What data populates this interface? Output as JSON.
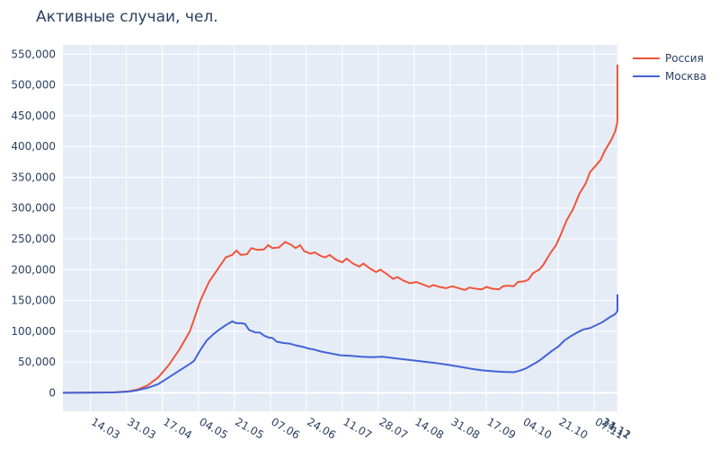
{
  "chart_data": {
    "type": "line",
    "title": "Активные случаи, чел.",
    "xlabel": "",
    "ylabel": "",
    "ylim": [
      -30000,
      565000
    ],
    "y_ticks": [
      0,
      50000,
      100000,
      150000,
      200000,
      250000,
      300000,
      350000,
      400000,
      450000,
      500000,
      550000
    ],
    "y_tick_labels": [
      "0",
      "50,000",
      "100,000",
      "150,000",
      "200,000",
      "250,000",
      "300,000",
      "350,000",
      "400,000",
      "450,000",
      "500,000",
      "550,000"
    ],
    "x_start": "2020-03-01",
    "x_end": "2020-11-18",
    "x_ticks": [
      "2020-03-14",
      "2020-03-31",
      "2020-04-17",
      "2020-05-04",
      "2020-05-21",
      "2020-06-07",
      "2020-06-24",
      "2020-07-11",
      "2020-07-28",
      "2020-08-14",
      "2020-08-31",
      "2020-09-17",
      "2020-10-04",
      "2020-10-21",
      "2020-11-07",
      "2020-11-24",
      "2020-12-11"
    ],
    "x_tick_labels": [
      "14.03",
      "31.03",
      "17.04",
      "04.05",
      "21.05",
      "07.06",
      "24.06",
      "11.07",
      "28.07",
      "14.08",
      "31.08",
      "17.09",
      "04.10",
      "21.10",
      "07.11",
      "24.11",
      "11.12"
    ],
    "grid": true,
    "legend_position": "top-right",
    "series": [
      {
        "name": "Россия",
        "color": "#ef553b",
        "points": [
          [
            "2020-03-01",
            0
          ],
          [
            "2020-03-14",
            500
          ],
          [
            "2020-03-25",
            800
          ],
          [
            "2020-04-01",
            2500
          ],
          [
            "2020-04-05",
            5000
          ],
          [
            "2020-04-10",
            12000
          ],
          [
            "2020-04-15",
            25000
          ],
          [
            "2020-04-20",
            45000
          ],
          [
            "2020-04-25",
            70000
          ],
          [
            "2020-04-30",
            100000
          ],
          [
            "2020-05-05",
            150000
          ],
          [
            "2020-05-09",
            180000
          ],
          [
            "2020-05-13",
            200000
          ],
          [
            "2020-05-17",
            220000
          ],
          [
            "2020-05-20",
            224000
          ],
          [
            "2020-05-22",
            231000
          ],
          [
            "2020-05-24",
            224000
          ],
          [
            "2020-05-27",
            225000
          ],
          [
            "2020-05-29",
            235000
          ],
          [
            "2020-06-01",
            232000
          ],
          [
            "2020-06-04",
            233000
          ],
          [
            "2020-06-06",
            240000
          ],
          [
            "2020-06-08",
            235000
          ],
          [
            "2020-06-11",
            236000
          ],
          [
            "2020-06-14",
            245000
          ],
          [
            "2020-06-17",
            240000
          ],
          [
            "2020-06-19",
            235000
          ],
          [
            "2020-06-21",
            240000
          ],
          [
            "2020-06-23",
            230000
          ],
          [
            "2020-06-26",
            226000
          ],
          [
            "2020-06-28",
            228000
          ],
          [
            "2020-07-01",
            222000
          ],
          [
            "2020-07-03",
            220000
          ],
          [
            "2020-07-05",
            224000
          ],
          [
            "2020-07-08",
            216000
          ],
          [
            "2020-07-11",
            212000
          ],
          [
            "2020-07-13",
            218000
          ],
          [
            "2020-07-16",
            210000
          ],
          [
            "2020-07-19",
            205000
          ],
          [
            "2020-07-21",
            210000
          ],
          [
            "2020-07-24",
            202000
          ],
          [
            "2020-07-27",
            196000
          ],
          [
            "2020-07-29",
            200000
          ],
          [
            "2020-08-01",
            193000
          ],
          [
            "2020-08-04",
            185000
          ],
          [
            "2020-08-06",
            188000
          ],
          [
            "2020-08-09",
            182000
          ],
          [
            "2020-08-12",
            178000
          ],
          [
            "2020-08-15",
            180000
          ],
          [
            "2020-08-18",
            176000
          ],
          [
            "2020-08-21",
            172000
          ],
          [
            "2020-08-23",
            175000
          ],
          [
            "2020-08-26",
            172000
          ],
          [
            "2020-08-29",
            170000
          ],
          [
            "2020-09-01",
            173000
          ],
          [
            "2020-09-04",
            170000
          ],
          [
            "2020-09-07",
            167000
          ],
          [
            "2020-09-09",
            171000
          ],
          [
            "2020-09-12",
            169000
          ],
          [
            "2020-09-15",
            168000
          ],
          [
            "2020-09-17",
            172000
          ],
          [
            "2020-09-20",
            169000
          ],
          [
            "2020-09-23",
            168000
          ],
          [
            "2020-09-25",
            173000
          ],
          [
            "2020-09-27",
            174000
          ],
          [
            "2020-09-30",
            173000
          ],
          [
            "2020-10-02",
            180000
          ],
          [
            "2020-10-05",
            181000
          ],
          [
            "2020-10-07",
            184000
          ],
          [
            "2020-10-09",
            194000
          ],
          [
            "2020-10-12",
            200000
          ],
          [
            "2020-10-14",
            208000
          ],
          [
            "2020-10-17",
            225000
          ],
          [
            "2020-10-20",
            240000
          ],
          [
            "2020-10-22",
            255000
          ],
          [
            "2020-10-25",
            280000
          ],
          [
            "2020-10-28",
            298000
          ],
          [
            "2020-10-31",
            323000
          ],
          [
            "2020-11-03",
            340000
          ],
          [
            "2020-11-05",
            358000
          ],
          [
            "2020-11-08",
            370000
          ],
          [
            "2020-11-10",
            378000
          ],
          [
            "2020-11-12",
            393000
          ],
          [
            "2020-11-15",
            410000
          ],
          [
            "2020-11-17",
            425000
          ],
          [
            "2020-11-20",
            440000
          ],
          [
            "2020-11-23",
            450000
          ],
          [
            "2020-11-25",
            465000
          ],
          [
            "2020-11-27",
            458000
          ],
          [
            "2020-11-29",
            455000
          ],
          [
            "2020-12-01",
            470000
          ],
          [
            "2020-12-03",
            468000
          ],
          [
            "2020-12-06",
            470000
          ],
          [
            "2020-12-08",
            480000
          ],
          [
            "2020-12-11",
            476000
          ],
          [
            "2020-12-13",
            480000
          ],
          [
            "2020-12-15",
            492000
          ],
          [
            "2020-12-17",
            494000
          ],
          [
            "2020-12-19",
            500000
          ],
          [
            "2020-12-21",
            512000
          ],
          [
            "2020-12-23",
            514000
          ],
          [
            "2020-12-25",
            517000
          ],
          [
            "2020-12-27",
            533000
          ]
        ]
      },
      {
        "name": "Москва",
        "color": "#4363d8",
        "points": [
          [
            "2020-03-01",
            0
          ],
          [
            "2020-03-14",
            300
          ],
          [
            "2020-03-25",
            600
          ],
          [
            "2020-04-01",
            2000
          ],
          [
            "2020-04-05",
            4000
          ],
          [
            "2020-04-10",
            8000
          ],
          [
            "2020-04-15",
            14000
          ],
          [
            "2020-04-20",
            25000
          ],
          [
            "2020-04-25",
            36000
          ],
          [
            "2020-04-30",
            47000
          ],
          [
            "2020-05-02",
            52000
          ],
          [
            "2020-05-05",
            70000
          ],
          [
            "2020-05-08",
            85000
          ],
          [
            "2020-05-11",
            95000
          ],
          [
            "2020-05-14",
            103000
          ],
          [
            "2020-05-17",
            110000
          ],
          [
            "2020-05-20",
            116000
          ],
          [
            "2020-05-22",
            113000
          ],
          [
            "2020-05-24",
            113000
          ],
          [
            "2020-05-26",
            112000
          ],
          [
            "2020-05-28",
            102000
          ],
          [
            "2020-05-31",
            98000
          ],
          [
            "2020-06-02",
            98000
          ],
          [
            "2020-06-04",
            93000
          ],
          [
            "2020-06-06",
            90000
          ],
          [
            "2020-06-08",
            89000
          ],
          [
            "2020-06-10",
            83000
          ],
          [
            "2020-06-13",
            81000
          ],
          [
            "2020-06-16",
            80000
          ],
          [
            "2020-06-19",
            77000
          ],
          [
            "2020-06-22",
            75000
          ],
          [
            "2020-06-25",
            72000
          ],
          [
            "2020-06-28",
            70000
          ],
          [
            "2020-07-01",
            67000
          ],
          [
            "2020-07-04",
            65000
          ],
          [
            "2020-07-07",
            63000
          ],
          [
            "2020-07-10",
            61000
          ],
          [
            "2020-07-15",
            60000
          ],
          [
            "2020-07-20",
            58500
          ],
          [
            "2020-07-25",
            58000
          ],
          [
            "2020-07-30",
            58500
          ],
          [
            "2020-08-05",
            56000
          ],
          [
            "2020-08-10",
            54000
          ],
          [
            "2020-08-15",
            52000
          ],
          [
            "2020-08-20",
            50000
          ],
          [
            "2020-08-25",
            48000
          ],
          [
            "2020-08-31",
            45000
          ],
          [
            "2020-09-05",
            42000
          ],
          [
            "2020-09-10",
            39000
          ],
          [
            "2020-09-15",
            36500
          ],
          [
            "2020-09-20",
            35000
          ],
          [
            "2020-09-25",
            34000
          ],
          [
            "2020-09-30",
            33500
          ],
          [
            "2020-10-03",
            36000
          ],
          [
            "2020-10-06",
            40000
          ],
          [
            "2020-10-09",
            46000
          ],
          [
            "2020-10-12",
            52000
          ],
          [
            "2020-10-15",
            60000
          ],
          [
            "2020-10-18",
            68000
          ],
          [
            "2020-10-21",
            75000
          ],
          [
            "2020-10-24",
            85000
          ],
          [
            "2020-10-27",
            92000
          ],
          [
            "2020-10-30",
            98000
          ],
          [
            "2020-11-02",
            103000
          ],
          [
            "2020-11-05",
            105000
          ],
          [
            "2020-11-08",
            110000
          ],
          [
            "2020-11-11",
            115000
          ],
          [
            "2020-11-14",
            122000
          ],
          [
            "2020-11-17",
            128000
          ],
          [
            "2020-11-20",
            133000
          ],
          [
            "2020-11-23",
            137000
          ],
          [
            "2020-11-26",
            138000
          ],
          [
            "2020-11-29",
            140000
          ],
          [
            "2020-12-02",
            143000
          ],
          [
            "2020-12-05",
            142000
          ],
          [
            "2020-12-08",
            145000
          ],
          [
            "2020-12-11",
            146000
          ],
          [
            "2020-12-14",
            148000
          ],
          [
            "2020-12-17",
            150000
          ],
          [
            "2020-12-20",
            153000
          ],
          [
            "2020-12-23",
            154000
          ],
          [
            "2020-12-25",
            155000
          ],
          [
            "2020-12-27",
            160000
          ]
        ]
      }
    ]
  }
}
